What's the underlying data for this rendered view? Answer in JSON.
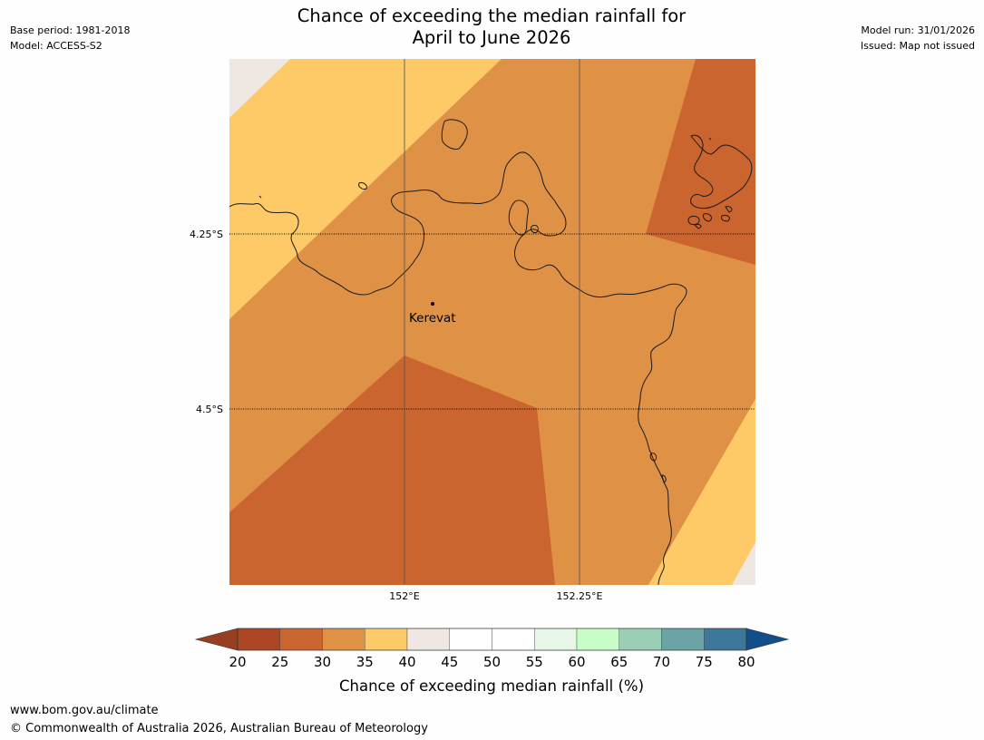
{
  "header": {
    "title_line1": "Chance of exceeding the median rainfall for",
    "title_line2": "April to June 2026",
    "base_period": "Base period: 1981-2018",
    "model": "Model: ACCESS-S2",
    "model_run": "Model run: 31/01/2026",
    "issued": "Issued: Map not issued"
  },
  "map": {
    "place_name": "Kerevat",
    "lat_labels": [
      "4.25°S",
      "4.5°S"
    ],
    "lon_labels": [
      "152°E",
      "152.25°E"
    ],
    "region_colors": {
      "prob_25_30": "#cb6530",
      "prob_30_35": "#df9245",
      "prob_35_40": "#fdca67",
      "prob_40_45": "#efe8e2"
    }
  },
  "colorbar": {
    "title": "Chance of exceeding median rainfall (%)",
    "tick_labels": [
      "20",
      "25",
      "30",
      "35",
      "40",
      "45",
      "50",
      "55",
      "60",
      "65",
      "70",
      "75",
      "80"
    ],
    "under_color": "#9a3e22",
    "over_color": "#124f8a",
    "bin_colors": [
      "#ac4624",
      "#cb6530",
      "#df9245",
      "#fdca67",
      "#efe8e2",
      "#ffffff",
      "#ffffff",
      "#e8f6e7",
      "#c7fdc7",
      "#9acfb6",
      "#6ba4a5",
      "#3d7799"
    ]
  },
  "footer": {
    "url": "www.bom.gov.au/climate",
    "copyright": "© Commonwealth of Australia 2026, Australian Bureau of Meteorology"
  }
}
